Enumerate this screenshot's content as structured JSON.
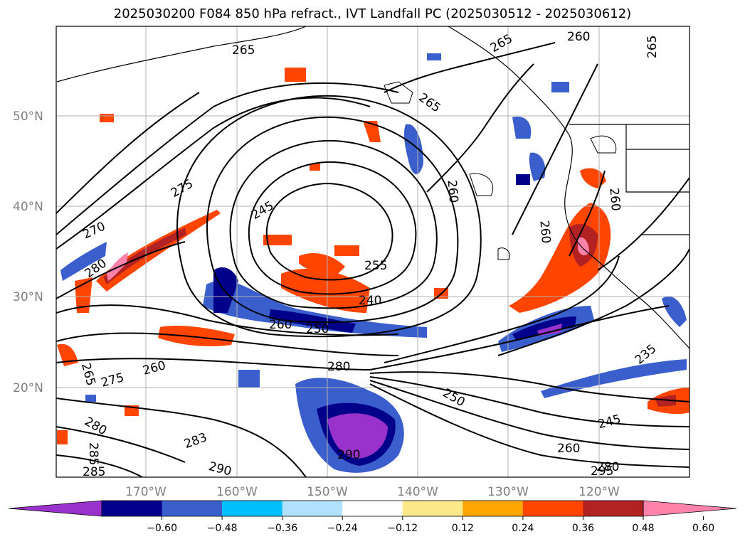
{
  "title": "2025030200 F084 850 hPa refract., IVT Landfall PC (2025030512 - 2025030612)",
  "lat_ticks": [
    "50°N",
    "40°N",
    "30°N",
    "20°N"
  ],
  "lon_ticks": [
    "170°W",
    "160°W",
    "150°W",
    "140°W",
    "130°W",
    "120°W"
  ],
  "contour_labels": [
    "265",
    "265",
    "260",
    "265",
    "265",
    "275",
    "245",
    "260",
    "270",
    "260",
    "255",
    "240",
    "280",
    "260",
    "250",
    "260",
    "280",
    "260",
    "265",
    "275",
    "250",
    "235",
    "245",
    "260",
    "280",
    "283",
    "290",
    "290",
    "285",
    "285",
    "295",
    "280"
  ],
  "colorbar": {
    "colors": [
      "#9932cc",
      "#00008b",
      "#3a5fcd",
      "#00bfff",
      "#b0e2ff",
      "#ffffff",
      "#fde98a",
      "#ffa500",
      "#ff4500",
      "#b22222",
      "#ff82ab"
    ],
    "ticks": [
      "−0.60",
      "−0.48",
      "−0.36",
      "−0.24",
      "−0.12",
      "0.12",
      "0.24",
      "0.36",
      "0.48",
      "0.60"
    ]
  }
}
